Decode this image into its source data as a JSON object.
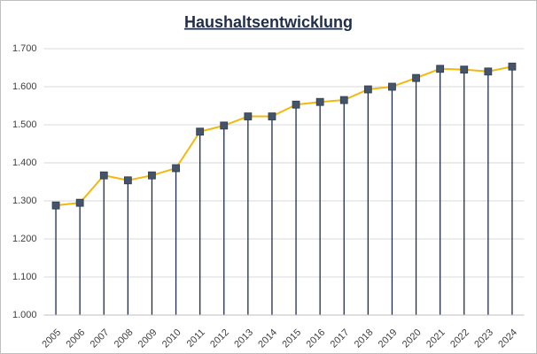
{
  "chart_data": {
    "type": "line",
    "title": "Haushaltsentwicklung",
    "categories": [
      "2005",
      "2006",
      "2007",
      "2008",
      "2009",
      "2010",
      "2011",
      "2012",
      "2013",
      "2014",
      "2015",
      "2016",
      "2017",
      "2018",
      "2019",
      "2020",
      "2021",
      "2022",
      "2023",
      "2024"
    ],
    "values": [
      1288,
      1295,
      1367,
      1354,
      1367,
      1386,
      1482,
      1498,
      1522,
      1522,
      1553,
      1560,
      1565,
      1593,
      1600,
      1623,
      1647,
      1645,
      1640,
      1653
    ],
    "color": "#f2b90f",
    "marker_color": "#44546a",
    "drop_line_color": "#1f2d4a",
    "ylim": [
      1000,
      1700
    ],
    "yticks": [
      {
        "value": 1000,
        "label": "1.000"
      },
      {
        "value": 1100,
        "label": "1.100"
      },
      {
        "value": 1200,
        "label": "1.200"
      },
      {
        "value": 1300,
        "label": "1.300"
      },
      {
        "value": 1400,
        "label": "1.400"
      },
      {
        "value": 1500,
        "label": "1.500"
      },
      {
        "value": 1600,
        "label": "1.600"
      },
      {
        "value": 1700,
        "label": "1.700"
      }
    ],
    "grid": true
  }
}
